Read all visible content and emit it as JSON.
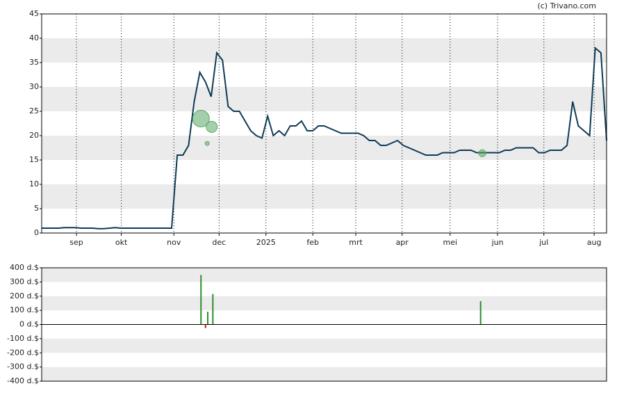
{
  "chart_data": [
    {
      "type": "line",
      "credit": "(c) Trivano.com",
      "values": [
        1.0,
        1.0,
        1.0,
        1.0,
        1.1,
        1.1,
        1.1,
        1.0,
        1.0,
        1.0,
        0.9,
        0.9,
        1.0,
        1.1,
        1.0,
        1.0,
        1.0,
        1.0,
        1.0,
        1.0,
        1.0,
        1.0,
        1.0,
        1.0,
        16,
        16,
        18,
        27,
        33,
        31,
        28,
        37,
        35.5,
        26,
        25,
        25,
        23,
        21,
        20,
        19.5,
        24,
        20,
        21,
        20,
        22,
        22,
        23,
        21,
        21,
        22,
        22,
        21.5,
        21,
        20.5,
        20.5,
        20.5,
        20.5,
        20,
        19,
        19,
        18,
        18,
        18.5,
        19,
        18,
        17.5,
        17,
        16.5,
        16,
        16,
        16,
        16.5,
        16.5,
        16.5,
        17,
        17,
        17,
        16.5,
        16.5,
        16.5,
        16.5,
        16.5,
        17,
        17,
        17.5,
        17.5,
        17.5,
        17.5,
        16.5,
        16.5,
        17,
        17,
        17,
        18,
        27,
        22,
        21,
        20,
        38,
        37,
        19
      ],
      "color": "#0d3a55",
      "xlim": [
        0,
        100
      ],
      "xticks": [
        {
          "value": 6.15,
          "label": "sep"
        },
        {
          "value": 14.1,
          "label": "okt"
        },
        {
          "value": 23.4,
          "label": "nov"
        },
        {
          "value": 31.4,
          "label": "dec"
        },
        {
          "value": 39.7,
          "label": "2025"
        },
        {
          "value": 48,
          "label": "feb"
        },
        {
          "value": 55.6,
          "label": "mrt"
        },
        {
          "value": 63.8,
          "label": "apr"
        },
        {
          "value": 72.3,
          "label": "mei"
        },
        {
          "value": 80.7,
          "label": "jun"
        },
        {
          "value": 88.9,
          "label": "jul"
        },
        {
          "value": 97.8,
          "label": "aug"
        }
      ],
      "ylim": [
        0,
        45
      ],
      "yticks": [
        0,
        5,
        10,
        15,
        20,
        25,
        30,
        35,
        40,
        45
      ],
      "grid": true,
      "bands": true,
      "bubbles": {
        "x": [
          28.2,
          30.1,
          29.3,
          78
        ],
        "values": [
          23.5,
          21.8,
          18.4,
          16.4
        ],
        "sizes": [
          12,
          8,
          3,
          5
        ],
        "color": "#5aa866"
      }
    },
    {
      "type": "bar",
      "x": [
        28.2,
        29.0,
        29.4,
        30.3,
        77.7
      ],
      "values": [
        350,
        -25,
        90,
        215,
        165
      ],
      "colors": [
        "#2e8b2e",
        "#cc1111",
        "#2e8b2e",
        "#2e8b2e",
        "#2e8b2e"
      ],
      "xlim": [
        0,
        100
      ],
      "ylim": [
        -400,
        400
      ],
      "yticks": [
        {
          "value": 400,
          "label": "400 d.$"
        },
        {
          "value": 300,
          "label": "300 d.$"
        },
        {
          "value": 200,
          "label": "200 d.$"
        },
        {
          "value": 100,
          "label": "100 d.$"
        },
        {
          "value": 0,
          "label": "0 d.$"
        },
        {
          "value": -100,
          "label": "-100 d.$"
        },
        {
          "value": -200,
          "label": "-200 d.$"
        },
        {
          "value": -300,
          "label": "-300 d.$"
        },
        {
          "value": -400,
          "label": "-400 d.$"
        }
      ],
      "bands": true
    }
  ]
}
